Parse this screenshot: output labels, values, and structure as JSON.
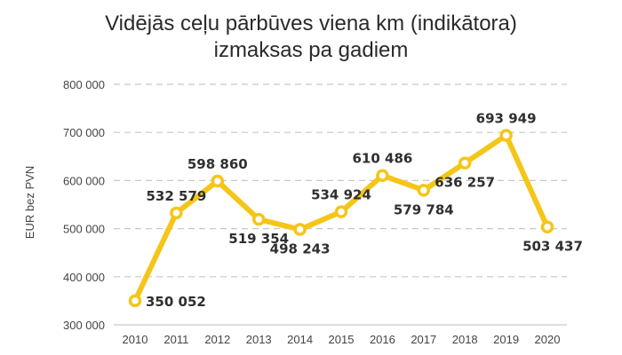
{
  "chart_data": {
    "type": "line",
    "title_line1": "Vidējās ceļu pārbūves viena km (indikātora)",
    "title_line2": "izmaksas pa gadiem",
    "ylabel": "EUR bez PVN",
    "xlabel": "",
    "ylim": [
      300000,
      800000
    ],
    "yticks": [
      300000,
      400000,
      500000,
      600000,
      700000,
      800000
    ],
    "ytick_labels": [
      "300 000",
      "400 000",
      "500 000",
      "600 000",
      "700 000",
      "800 000"
    ],
    "categories": [
      "2010",
      "2011",
      "2012",
      "2013",
      "2014",
      "2015",
      "2016",
      "2017",
      "2018",
      "2019",
      "2020"
    ],
    "values": [
      350052,
      532579,
      598860,
      519354,
      498243,
      534924,
      610486,
      579784,
      636257,
      693949,
      503437
    ],
    "value_labels": [
      "350 052",
      "532 579",
      "598 860",
      "519 354",
      "498 243",
      "534 924",
      "610 486",
      "579 784",
      "636 257",
      "693 949",
      "503 437"
    ],
    "label_side": [
      "right",
      "above",
      "above",
      "below",
      "below",
      "above",
      "above",
      "below",
      "below",
      "above",
      "below"
    ],
    "grid": true,
    "line_color": "#f5c518",
    "grid_color": "#c8c8c8",
    "text_color": "#2f2f2f"
  }
}
